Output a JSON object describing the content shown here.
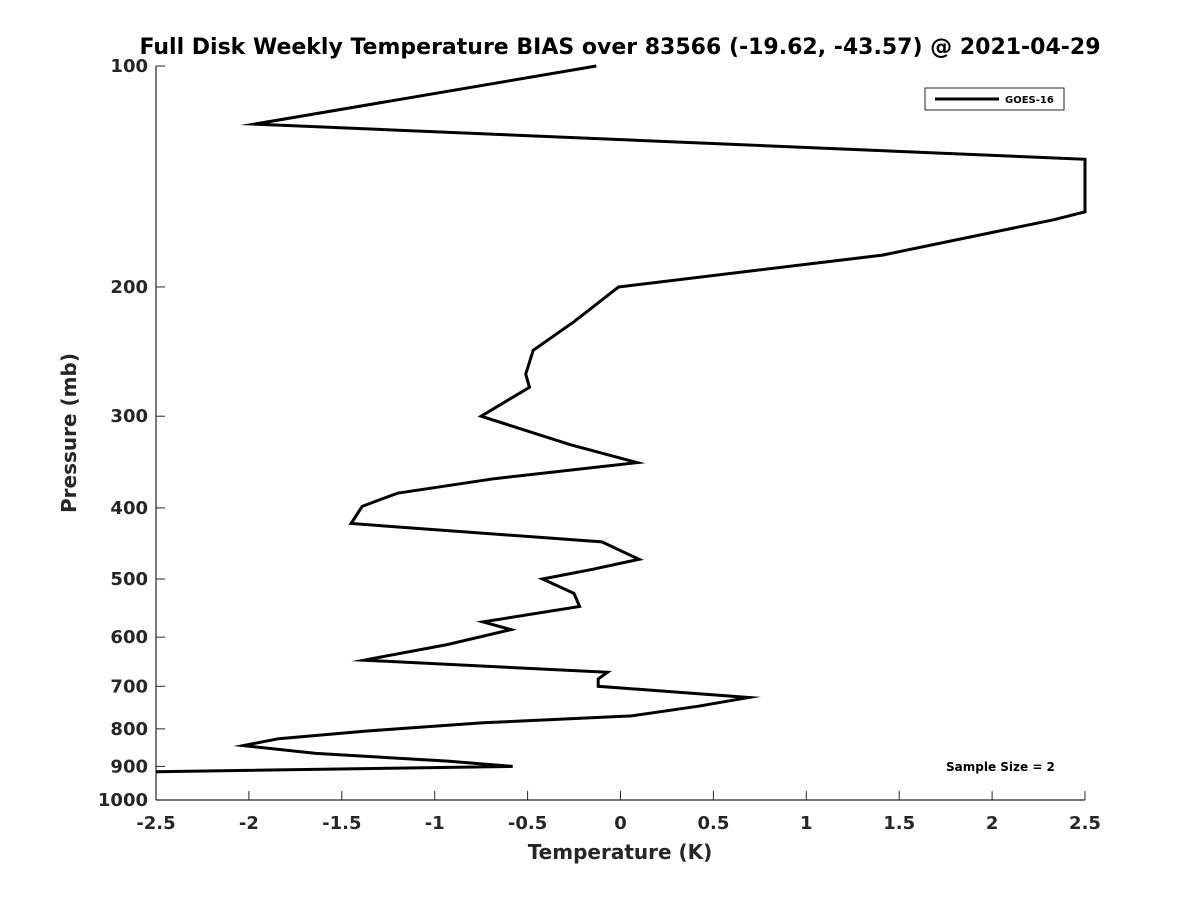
{
  "chart_data": {
    "type": "line",
    "title": "Full Disk Weekly Temperature BIAS over 83566 (-19.62, -43.57) @ 2021-04-29",
    "xlabel": "Temperature (K)",
    "ylabel": "Pressure (mb)",
    "xlim": [
      -2.5,
      2.5
    ],
    "ylim": [
      100,
      1000
    ],
    "yscale": "log",
    "y_reversed": true,
    "grid": false,
    "x_ticks": [
      -2.5,
      -2,
      -1.5,
      -1,
      -0.5,
      0,
      0.5,
      1,
      1.5,
      2,
      2.5
    ],
    "x_tick_labels": [
      "-2.5",
      "-2",
      "-1.5",
      "-1",
      "-0.5",
      "0",
      "0.5",
      "1",
      "1.5",
      "2",
      "2.5"
    ],
    "y_ticks": [
      100,
      200,
      300,
      400,
      500,
      600,
      700,
      800,
      900,
      1000
    ],
    "y_tick_labels": [
      "100",
      "200",
      "300",
      "400",
      "500",
      "600",
      "700",
      "800",
      "900",
      "1000"
    ],
    "legend": {
      "position": "top-right",
      "entries": [
        "GOES-16"
      ]
    },
    "annotation": "Sample Size = 2",
    "series": [
      {
        "name": "GOES-16",
        "color": "#000000",
        "points": [
          [
            -0.13,
            100
          ],
          [
            -1.97,
            120
          ],
          [
            2.5,
            134
          ],
          [
            2.5,
            158
          ],
          [
            2.33,
            162
          ],
          [
            1.41,
            181
          ],
          [
            -0.01,
            200
          ],
          [
            -0.25,
            223
          ],
          [
            -0.47,
            244
          ],
          [
            -0.51,
            263
          ],
          [
            -0.49,
            274
          ],
          [
            -0.75,
            300
          ],
          [
            -0.27,
            328
          ],
          [
            0.09,
            347
          ],
          [
            -0.68,
            365
          ],
          [
            -1.2,
            382
          ],
          [
            -1.39,
            398
          ],
          [
            -1.45,
            420
          ],
          [
            -0.1,
            445
          ],
          [
            0.1,
            470
          ],
          [
            -0.15,
            485
          ],
          [
            -0.42,
            500
          ],
          [
            -0.25,
            523
          ],
          [
            -0.22,
            545
          ],
          [
            -0.74,
            572
          ],
          [
            -0.59,
            586
          ],
          [
            -0.93,
            614
          ],
          [
            -1.38,
            645
          ],
          [
            -0.07,
            670
          ],
          [
            -0.12,
            684
          ],
          [
            -0.12,
            700
          ],
          [
            0.69,
            725
          ],
          [
            0.42,
            745
          ],
          [
            0.06,
            768
          ],
          [
            -0.74,
            785
          ],
          [
            -1.38,
            806
          ],
          [
            -1.84,
            825
          ],
          [
            -2.03,
            843
          ],
          [
            -1.64,
            864
          ],
          [
            -0.93,
            885
          ],
          [
            -0.58,
            900
          ],
          [
            -2.5,
            915
          ]
        ]
      }
    ]
  }
}
